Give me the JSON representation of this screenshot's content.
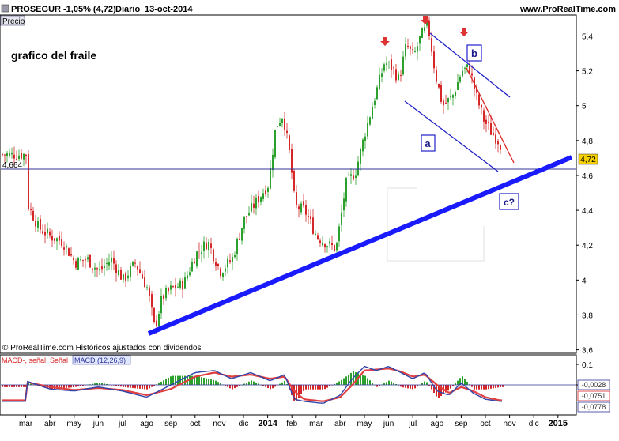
{
  "header": {
    "ticker": "PROSEGUR",
    "change": "-1,05% (4,72)",
    "period": "Diario",
    "date": "13-oct-2014",
    "site": "www.ProRealTime.com"
  },
  "price_panel": {
    "tab_label": "Precio",
    "annotation": "grafico del fraile",
    "footer": "© ProRealTime.com Históricos ajustados con dividendos",
    "hline_label": "4,664",
    "last_price_label": "4,72",
    "wave_labels": [
      "a",
      "b",
      "c?"
    ]
  },
  "macd_panel": {
    "legend": [
      "MACD-, señal",
      "Señal",
      "MACD (12,26,9)"
    ],
    "value_labels": [
      "-0,0028",
      "-0,0751",
      "-0,0778"
    ]
  },
  "colors": {
    "up": "#2ca02c",
    "down": "#d62728",
    "trendline": "#1a1aff",
    "channel": "#2020cc",
    "resistance": "#dd2222",
    "hline": "#333399",
    "arrow": "#dd3333",
    "last_price_bg": "#f5d000"
  },
  "chart_data": [
    {
      "type": "candlestick",
      "title": "PROSEGUR -1,05% (4,72) Diario 13-oct-2014",
      "x_tick_labels": [
        "mar",
        "abr",
        "may",
        "jun",
        "jul",
        "ago",
        "sep",
        "oct",
        "nov",
        "dic",
        "2014",
        "feb",
        "mar",
        "abr",
        "may",
        "jun",
        "jul",
        "ago",
        "sep",
        "oct",
        "nov",
        "dic",
        "2015"
      ],
      "y_tick_labels": [
        "5,4",
        "5,2",
        "5",
        "4,8",
        "4,6",
        "4,4",
        "4,2",
        "4",
        "3,8",
        "3,6"
      ],
      "ylim": [
        3.58,
        5.52
      ],
      "close_series": [
        {
          "x": 0,
          "y": 4.45
        },
        {
          "x": 0.5,
          "y": 4.3
        },
        {
          "x": 1.0,
          "y": 4.25
        },
        {
          "x": 1.5,
          "y": 4.22
        },
        {
          "x": 2.0,
          "y": 4.1
        },
        {
          "x": 2.5,
          "y": 4.12
        },
        {
          "x": 3.0,
          "y": 4.05
        },
        {
          "x": 3.5,
          "y": 4.12
        },
        {
          "x": 4.0,
          "y": 4.0
        },
        {
          "x": 4.5,
          "y": 4.1
        },
        {
          "x": 5.0,
          "y": 3.95
        },
        {
          "x": 5.3,
          "y": 3.72
        },
        {
          "x": 5.6,
          "y": 3.9
        },
        {
          "x": 6.0,
          "y": 3.95
        },
        {
          "x": 6.5,
          "y": 3.98
        },
        {
          "x": 7.0,
          "y": 4.15
        },
        {
          "x": 7.5,
          "y": 4.22
        },
        {
          "x": 8.0,
          "y": 4.05
        },
        {
          "x": 8.5,
          "y": 4.12
        },
        {
          "x": 9.0,
          "y": 4.35
        },
        {
          "x": 9.5,
          "y": 4.45
        },
        {
          "x": 10.0,
          "y": 4.55
        },
        {
          "x": 10.3,
          "y": 4.88
        },
        {
          "x": 10.6,
          "y": 4.95
        },
        {
          "x": 10.9,
          "y": 4.7
        },
        {
          "x": 11.1,
          "y": 4.42
        },
        {
          "x": 11.5,
          "y": 4.4
        },
        {
          "x": 12.0,
          "y": 4.25
        },
        {
          "x": 12.5,
          "y": 4.2
        },
        {
          "x": 12.8,
          "y": 4.18
        },
        {
          "x": 13.2,
          "y": 4.55
        },
        {
          "x": 13.6,
          "y": 4.62
        },
        {
          "x": 14.0,
          "y": 4.85
        },
        {
          "x": 14.4,
          "y": 5.05
        },
        {
          "x": 14.8,
          "y": 5.25
        },
        {
          "x": 15.1,
          "y": 5.22
        },
        {
          "x": 15.4,
          "y": 5.15
        },
        {
          "x": 15.7,
          "y": 5.35
        },
        {
          "x": 16.0,
          "y": 5.28
        },
        {
          "x": 16.3,
          "y": 5.4
        },
        {
          "x": 16.6,
          "y": 5.46
        },
        {
          "x": 16.9,
          "y": 5.18
        },
        {
          "x": 17.2,
          "y": 5.0
        },
        {
          "x": 17.6,
          "y": 5.05
        },
        {
          "x": 18.0,
          "y": 5.2
        },
        {
          "x": 18.3,
          "y": 5.22
        },
        {
          "x": 18.6,
          "y": 5.05
        },
        {
          "x": 18.9,
          "y": 4.92
        },
        {
          "x": 19.2,
          "y": 4.85
        },
        {
          "x": 19.5,
          "y": 4.8
        },
        {
          "x": 19.8,
          "y": 4.72
        }
      ]
    },
    {
      "type": "line",
      "title": "MACD (12,26,9)",
      "y_tick_labels": [
        "0,1",
        "0"
      ],
      "ylim": [
        -0.12,
        0.12
      ],
      "series": [
        {
          "name": "MACD (12,26,9)",
          "points": [
            {
              "x": 0,
              "y": 0.02
            },
            {
              "x": 1,
              "y": -0.02
            },
            {
              "x": 2,
              "y": -0.03
            },
            {
              "x": 3,
              "y": -0.01
            },
            {
              "x": 4,
              "y": -0.03
            },
            {
              "x": 5,
              "y": -0.06
            },
            {
              "x": 6,
              "y": 0.0
            },
            {
              "x": 7,
              "y": 0.06
            },
            {
              "x": 7.8,
              "y": 0.07
            },
            {
              "x": 8.5,
              "y": 0.03
            },
            {
              "x": 9.3,
              "y": 0.06
            },
            {
              "x": 10.1,
              "y": 0.02
            },
            {
              "x": 10.7,
              "y": 0.05
            },
            {
              "x": 11.1,
              "y": -0.07
            },
            {
              "x": 11.5,
              "y": -0.08
            },
            {
              "x": 12.3,
              "y": -0.09
            },
            {
              "x": 13.0,
              "y": -0.05
            },
            {
              "x": 13.5,
              "y": 0.03
            },
            {
              "x": 14.0,
              "y": 0.09
            },
            {
              "x": 14.5,
              "y": 0.07
            },
            {
              "x": 15.0,
              "y": 0.09
            },
            {
              "x": 15.5,
              "y": 0.06
            },
            {
              "x": 16.0,
              "y": 0.03
            },
            {
              "x": 16.5,
              "y": 0.06
            },
            {
              "x": 17.0,
              "y": -0.03
            },
            {
              "x": 17.5,
              "y": -0.05
            },
            {
              "x": 18.0,
              "y": 0.01
            },
            {
              "x": 18.5,
              "y": -0.04
            },
            {
              "x": 19.0,
              "y": -0.07
            },
            {
              "x": 19.6,
              "y": -0.08
            }
          ]
        },
        {
          "name": "Señal",
          "points": [
            {
              "x": 0,
              "y": 0.015
            },
            {
              "x": 1,
              "y": -0.01
            },
            {
              "x": 2,
              "y": -0.025
            },
            {
              "x": 3,
              "y": -0.015
            },
            {
              "x": 4,
              "y": -0.025
            },
            {
              "x": 5,
              "y": -0.05
            },
            {
              "x": 6,
              "y": -0.02
            },
            {
              "x": 7,
              "y": 0.04
            },
            {
              "x": 7.8,
              "y": 0.06
            },
            {
              "x": 8.5,
              "y": 0.04
            },
            {
              "x": 9.3,
              "y": 0.05
            },
            {
              "x": 10.1,
              "y": 0.03
            },
            {
              "x": 10.7,
              "y": 0.04
            },
            {
              "x": 11.1,
              "y": -0.03
            },
            {
              "x": 11.5,
              "y": -0.07
            },
            {
              "x": 12.3,
              "y": -0.08
            },
            {
              "x": 13.0,
              "y": -0.06
            },
            {
              "x": 13.5,
              "y": 0.0
            },
            {
              "x": 14.0,
              "y": 0.07
            },
            {
              "x": 14.5,
              "y": 0.075
            },
            {
              "x": 15.0,
              "y": 0.08
            },
            {
              "x": 15.5,
              "y": 0.065
            },
            {
              "x": 16.0,
              "y": 0.04
            },
            {
              "x": 16.5,
              "y": 0.05
            },
            {
              "x": 17.0,
              "y": 0.0
            },
            {
              "x": 17.5,
              "y": -0.04
            },
            {
              "x": 18.0,
              "y": -0.01
            },
            {
              "x": 18.5,
              "y": -0.03
            },
            {
              "x": 19.0,
              "y": -0.06
            },
            {
              "x": 19.6,
              "y": -0.075
            }
          ]
        }
      ]
    }
  ]
}
